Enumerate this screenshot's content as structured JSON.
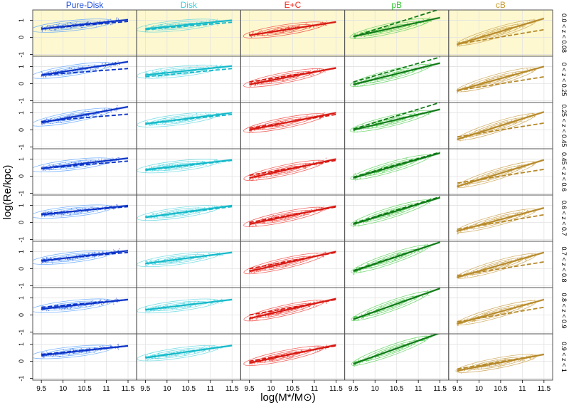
{
  "chart_data": {
    "type": "scatter",
    "title": "",
    "xlabel": "log(M*/M⊙)",
    "ylabel": "log(Re/kpc)",
    "xlim": [
      9.3,
      11.7
    ],
    "ylim": [
      -1.1,
      1.6
    ],
    "x_ticks": [
      "9.5",
      "10",
      "10.5",
      "11",
      "11.5"
    ],
    "y_ticks": [
      "-1",
      "0",
      "1"
    ],
    "panel_grid": "8 rows (redshift bins) x 5 columns (morphological types)",
    "highlight_row_color": "#fdf8cf",
    "columns": [
      {
        "label": "Pure-Disk",
        "color": "#1f4fdc",
        "line_color": "#0a33c8",
        "contour_color": "#5aa3ff"
      },
      {
        "label": "Disk",
        "color": "#33d0dc",
        "line_color": "#14b9c9",
        "contour_color": "#5fd6e0"
      },
      {
        "label": "E+C",
        "color": "#f22a1e",
        "line_color": "#d81812",
        "contour_color": "#f0403a"
      },
      {
        "label": "pB",
        "color": "#33c833",
        "line_color": "#0f7a16",
        "contour_color": "#5ad05a"
      },
      {
        "label": "cB",
        "color": "#c99a2e",
        "line_color": "#b6892a",
        "contour_color": "#c9a04c"
      }
    ],
    "rows": [
      "0.0 < z < 0.08",
      "0 < z < 0.25",
      "0.25 < z < 0.45",
      "0.45 < z < 0.6",
      "0.6 < z < 0.7",
      "0.7 < z < 0.8",
      "0.8 < z < 0.9",
      "0.9 < z < 1"
    ],
    "series_description": "Each panel: scatter of galaxies, density contours, solid fit line (this redshift bin) and dashed reference line (local relation)",
    "fits": [
      [
        {
          "solid": [
            [
              9.5,
              0.5
            ],
            [
              11.5,
              1.03
            ]
          ],
          "dashed": [
            [
              9.5,
              0.5
            ],
            [
              11.5,
              0.93
            ]
          ]
        },
        {
          "solid": [
            [
              9.5,
              0.5
            ],
            [
              11.5,
              1.0
            ]
          ],
          "dashed": [
            [
              9.5,
              0.45
            ],
            [
              11.5,
              0.88
            ]
          ]
        },
        {
          "solid": [
            [
              9.5,
              0.12
            ],
            [
              11.5,
              0.9
            ]
          ],
          "dashed": [
            [
              9.5,
              0.12
            ],
            [
              11.5,
              0.9
            ]
          ]
        },
        {
          "solid": [
            [
              9.5,
              0.05
            ],
            [
              11.5,
              1.15
            ]
          ],
          "dashed": [
            [
              9.5,
              0.05
            ],
            [
              11.5,
              1.65
            ]
          ]
        },
        {
          "solid": [
            [
              9.5,
              -0.4
            ],
            [
              11.5,
              1.1
            ]
          ],
          "dashed": [
            [
              9.5,
              -0.4
            ],
            [
              11.5,
              0.45
            ]
          ]
        }
      ],
      [
        {
          "solid": [
            [
              9.5,
              0.5
            ],
            [
              11.5,
              1.28
            ]
          ],
          "dashed": [
            [
              9.5,
              0.5
            ],
            [
              11.5,
              0.88
            ]
          ]
        },
        {
          "solid": [
            [
              9.5,
              0.5
            ],
            [
              11.5,
              1.03
            ]
          ],
          "dashed": [
            [
              9.5,
              0.4
            ],
            [
              11.5,
              0.88
            ]
          ]
        },
        {
          "solid": [
            [
              9.5,
              -0.05
            ],
            [
              11.5,
              0.92
            ]
          ],
          "dashed": [
            [
              9.5,
              0.1
            ],
            [
              11.5,
              0.9
            ]
          ]
        },
        {
          "solid": [
            [
              9.5,
              -0.05
            ],
            [
              11.5,
              1.2
            ]
          ],
          "dashed": [
            [
              9.5,
              0.1
            ],
            [
              11.5,
              1.55
            ]
          ]
        },
        {
          "solid": [
            [
              9.5,
              -0.4
            ],
            [
              11.5,
              1.0
            ]
          ],
          "dashed": [
            [
              9.5,
              -0.4
            ],
            [
              11.5,
              0.4
            ]
          ]
        }
      ],
      [
        {
          "solid": [
            [
              9.5,
              0.42
            ],
            [
              11.5,
              1.35
            ]
          ],
          "dashed": [
            [
              9.5,
              0.5
            ],
            [
              11.5,
              0.92
            ]
          ]
        },
        {
          "solid": [
            [
              9.5,
              0.35
            ],
            [
              11.5,
              1.0
            ]
          ],
          "dashed": [
            [
              9.5,
              0.38
            ],
            [
              11.5,
              0.9
            ]
          ]
        },
        {
          "solid": [
            [
              9.5,
              0.0
            ],
            [
              11.5,
              1.0
            ]
          ],
          "dashed": [
            [
              9.5,
              0.1
            ],
            [
              11.5,
              0.9
            ]
          ]
        },
        {
          "solid": [
            [
              9.5,
              0.0
            ],
            [
              11.5,
              1.2
            ]
          ],
          "dashed": [
            [
              9.5,
              0.05
            ],
            [
              11.5,
              1.6
            ]
          ]
        },
        {
          "solid": [
            [
              9.5,
              -0.55
            ],
            [
              11.5,
              1.05
            ]
          ],
          "dashed": [
            [
              9.5,
              -0.4
            ],
            [
              11.5,
              0.4
            ]
          ]
        }
      ],
      [
        {
          "solid": [
            [
              9.5,
              0.45
            ],
            [
              11.5,
              1.05
            ]
          ],
          "dashed": [
            [
              9.5,
              0.45
            ],
            [
              11.5,
              0.88
            ]
          ]
        },
        {
          "solid": [
            [
              9.5,
              0.38
            ],
            [
              11.5,
              0.95
            ]
          ],
          "dashed": [
            [
              9.5,
              0.35
            ],
            [
              11.5,
              0.92
            ]
          ]
        },
        {
          "solid": [
            [
              9.5,
              -0.1
            ],
            [
              11.5,
              1.0
            ]
          ],
          "dashed": [
            [
              9.5,
              0.05
            ],
            [
              11.5,
              0.92
            ]
          ]
        },
        {
          "solid": [
            [
              9.5,
              -0.1
            ],
            [
              11.5,
              1.35
            ]
          ],
          "dashed": [
            [
              9.5,
              -0.05
            ],
            [
              11.5,
              1.4
            ]
          ]
        },
        {
          "solid": [
            [
              9.5,
              -0.6
            ],
            [
              11.5,
              0.95
            ]
          ],
          "dashed": [
            [
              9.5,
              -0.4
            ],
            [
              11.5,
              0.4
            ]
          ]
        }
      ],
      [
        {
          "solid": [
            [
              9.5,
              0.45
            ],
            [
              11.5,
              0.98
            ]
          ],
          "dashed": [
            [
              9.5,
              0.5
            ],
            [
              11.5,
              0.92
            ]
          ]
        },
        {
          "solid": [
            [
              9.5,
              0.3
            ],
            [
              11.5,
              0.98
            ]
          ],
          "dashed": [
            [
              9.5,
              0.3
            ],
            [
              11.5,
              0.92
            ]
          ]
        },
        {
          "solid": [
            [
              9.5,
              -0.1
            ],
            [
              11.5,
              0.95
            ]
          ],
          "dashed": [
            [
              9.5,
              0.0
            ],
            [
              11.5,
              0.9
            ]
          ]
        },
        {
          "solid": [
            [
              9.5,
              -0.1
            ],
            [
              11.5,
              1.45
            ]
          ],
          "dashed": [
            [
              9.5,
              -0.05
            ],
            [
              11.5,
              1.5
            ]
          ]
        },
        {
          "solid": [
            [
              9.5,
              -0.5
            ],
            [
              11.5,
              0.85
            ]
          ],
          "dashed": [
            [
              9.5,
              -0.4
            ],
            [
              11.5,
              0.45
            ]
          ]
        }
      ],
      [
        {
          "solid": [
            [
              9.5,
              0.45
            ],
            [
              11.5,
              1.05
            ]
          ],
          "dashed": [
            [
              9.5,
              0.5
            ],
            [
              11.5,
              0.95
            ]
          ]
        },
        {
          "solid": [
            [
              9.5,
              0.3
            ],
            [
              11.5,
              0.95
            ]
          ],
          "dashed": [
            [
              9.5,
              0.3
            ],
            [
              11.5,
              0.95
            ]
          ]
        },
        {
          "solid": [
            [
              9.5,
              -0.15
            ],
            [
              11.5,
              1.0
            ]
          ],
          "dashed": [
            [
              9.5,
              0.0
            ],
            [
              11.5,
              0.95
            ]
          ]
        },
        {
          "solid": [
            [
              9.5,
              -0.15
            ],
            [
              11.5,
              1.55
            ]
          ],
          "dashed": [
            [
              9.5,
              -0.1
            ],
            [
              11.5,
              1.55
            ]
          ]
        },
        {
          "solid": [
            [
              9.5,
              -0.5
            ],
            [
              11.5,
              0.95
            ]
          ],
          "dashed": [
            [
              9.5,
              -0.4
            ],
            [
              11.5,
              0.4
            ]
          ]
        }
      ],
      [
        {
          "solid": [
            [
              9.5,
              0.35
            ],
            [
              11.5,
              0.9
            ]
          ],
          "dashed": [
            [
              9.5,
              0.45
            ],
            [
              11.5,
              0.9
            ]
          ]
        },
        {
          "solid": [
            [
              9.5,
              0.3
            ],
            [
              11.5,
              0.9
            ]
          ],
          "dashed": [
            [
              9.5,
              0.3
            ],
            [
              11.5,
              0.9
            ]
          ]
        },
        {
          "solid": [
            [
              9.5,
              -0.2
            ],
            [
              11.5,
              0.95
            ]
          ],
          "dashed": [
            [
              9.5,
              0.0
            ],
            [
              11.5,
              0.9
            ]
          ]
        },
        {
          "solid": [
            [
              9.5,
              -0.25
            ],
            [
              11.5,
              1.55
            ]
          ],
          "dashed": [
            [
              9.5,
              -0.25
            ],
            [
              11.5,
              1.55
            ]
          ]
        },
        {
          "solid": [
            [
              9.5,
              -0.5
            ],
            [
              11.5,
              0.9
            ]
          ],
          "dashed": [
            [
              9.5,
              -0.4
            ],
            [
              11.5,
              0.45
            ]
          ]
        }
      ],
      [
        {
          "solid": [
            [
              9.5,
              0.35
            ],
            [
              11.5,
              0.9
            ]
          ],
          "dashed": [
            [
              9.5,
              0.4
            ],
            [
              11.5,
              0.9
            ]
          ]
        },
        {
          "solid": [
            [
              9.5,
              0.2
            ],
            [
              11.5,
              0.92
            ]
          ],
          "dashed": [
            [
              9.5,
              0.22
            ],
            [
              11.5,
              0.92
            ]
          ]
        },
        {
          "solid": [
            [
              9.5,
              -0.1
            ],
            [
              11.5,
              0.95
            ]
          ],
          "dashed": [
            [
              9.5,
              0.0
            ],
            [
              11.5,
              0.9
            ]
          ]
        },
        {
          "solid": [
            [
              9.5,
              -0.15
            ],
            [
              11.5,
              1.65
            ]
          ],
          "dashed": [
            [
              9.5,
              -0.15
            ],
            [
              11.5,
              1.65
            ]
          ]
        },
        {
          "solid": [
            [
              9.5,
              -0.55
            ],
            [
              11.5,
              0.4
            ]
          ],
          "dashed": [
            [
              9.5,
              -0.45
            ],
            [
              11.5,
              0.4
            ]
          ]
        }
      ]
    ]
  }
}
